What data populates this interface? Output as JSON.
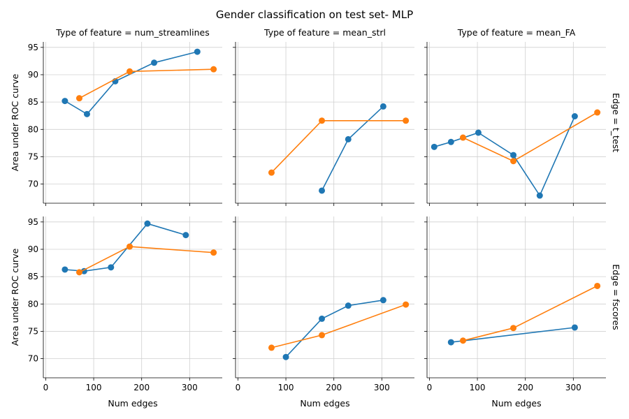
{
  "title": "Gender classification on test set- MLP",
  "colors": {
    "series_1": "#1f77b4",
    "series_2": "#ff7f0e"
  },
  "chart_data": {
    "type": "line",
    "facet_grid": {
      "columns": [
        "Type of feature = num_streamlines",
        "Type of feature = mean_strl",
        "Type of feature = mean_FA"
      ],
      "rows": [
        "Edge = t_test",
        "Edge = fscores"
      ]
    },
    "xlabel": "Num edges",
    "ylabel": "Area under ROC curve",
    "xlim": [
      -5,
      368
    ],
    "ylim": [
      66.5,
      96
    ],
    "xticks": [
      0,
      100,
      200,
      300
    ],
    "yticks": [
      70,
      75,
      80,
      85,
      90,
      95
    ],
    "grid": true,
    "panels": [
      {
        "row": 0,
        "col": 0,
        "series": [
          {
            "color": "#1f77b4",
            "x": [
              40,
              86,
              145,
              226,
              316
            ],
            "y": [
              85.2,
              82.8,
              88.8,
              92.2,
              94.2
            ]
          },
          {
            "color": "#ff7f0e",
            "x": [
              70,
              175,
              350
            ],
            "y": [
              85.7,
              90.6,
              91.0
            ]
          }
        ]
      },
      {
        "row": 0,
        "col": 1,
        "series": [
          {
            "color": "#1f77b4",
            "x": [
              175,
              230,
              303
            ],
            "y": [
              68.8,
              78.2,
              84.2
            ]
          },
          {
            "color": "#ff7f0e",
            "x": [
              70,
              175,
              350
            ],
            "y": [
              72.1,
              81.6,
              81.6
            ]
          }
        ]
      },
      {
        "row": 0,
        "col": 2,
        "series": [
          {
            "color": "#1f77b4",
            "x": [
              10,
              45,
              102,
              175,
              230,
              303
            ],
            "y": [
              76.8,
              77.7,
              79.4,
              75.3,
              67.9,
              82.4
            ]
          },
          {
            "color": "#ff7f0e",
            "x": [
              70,
              175,
              350
            ],
            "y": [
              78.5,
              74.2,
              83.1
            ]
          }
        ]
      },
      {
        "row": 1,
        "col": 0,
        "series": [
          {
            "color": "#1f77b4",
            "x": [
              40,
              80,
              136,
              212,
              292
            ],
            "y": [
              86.3,
              86.0,
              86.7,
              94.7,
              92.6
            ]
          },
          {
            "color": "#ff7f0e",
            "x": [
              70,
              175,
              350
            ],
            "y": [
              85.8,
              90.5,
              89.4
            ]
          }
        ]
      },
      {
        "row": 1,
        "col": 1,
        "series": [
          {
            "color": "#1f77b4",
            "x": [
              100,
              175,
              230,
              303
            ],
            "y": [
              70.3,
              77.3,
              79.7,
              80.7
            ]
          },
          {
            "color": "#ff7f0e",
            "x": [
              70,
              175,
              350
            ],
            "y": [
              72.0,
              74.3,
              79.9
            ]
          }
        ]
      },
      {
        "row": 1,
        "col": 2,
        "series": [
          {
            "color": "#1f77b4",
            "x": [
              45,
              303
            ],
            "y": [
              73.0,
              75.7
            ]
          },
          {
            "color": "#ff7f0e",
            "x": [
              70,
              175,
              350
            ],
            "y": [
              73.3,
              75.6,
              83.3
            ]
          }
        ]
      }
    ]
  }
}
